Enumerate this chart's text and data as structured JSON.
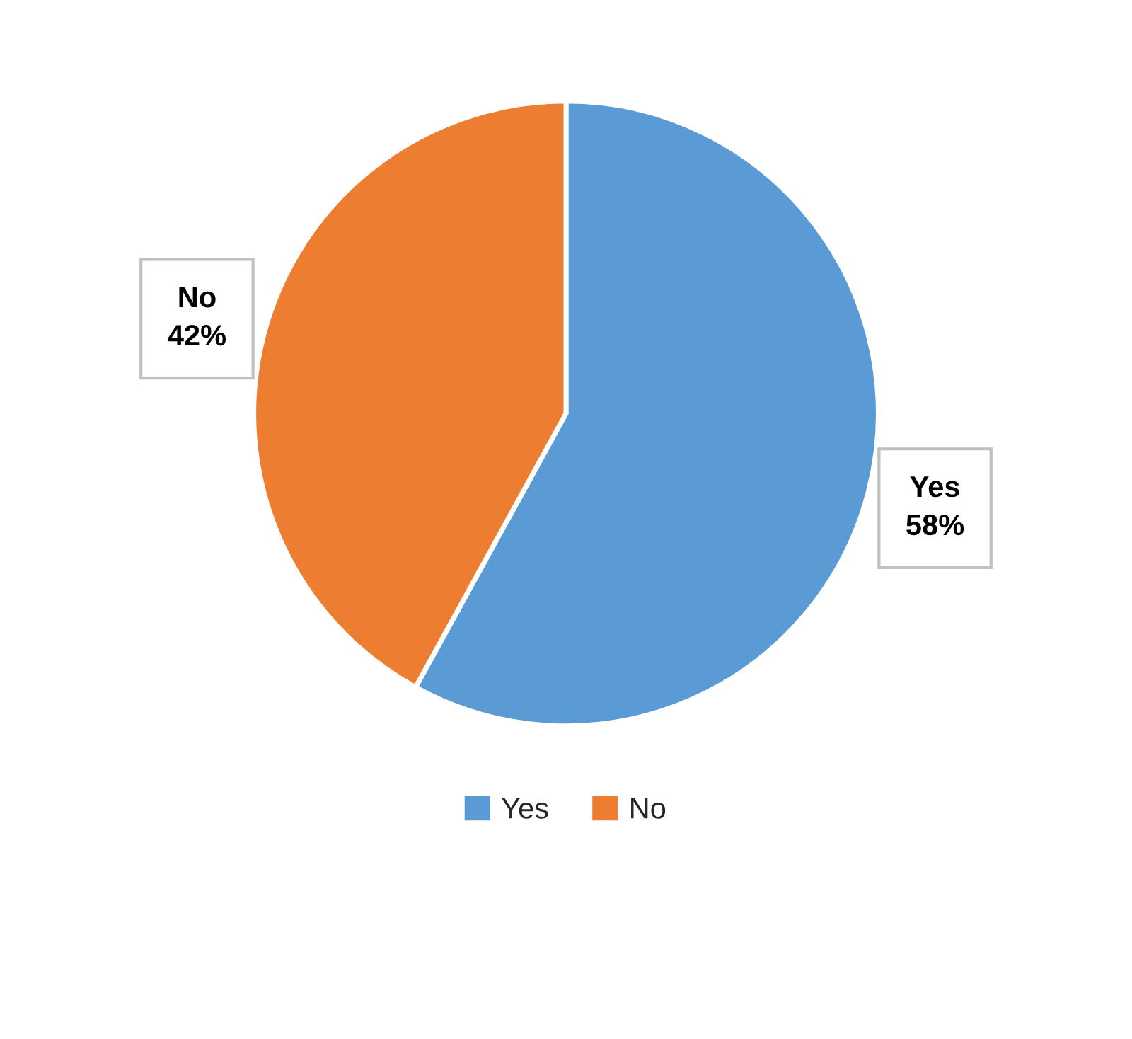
{
  "chart_data": {
    "type": "pie",
    "categories": [
      "Yes",
      "No"
    ],
    "values": [
      58,
      42
    ],
    "colors": [
      "#5b9bd5",
      "#ed7d31"
    ],
    "value_labels": [
      "58%",
      "42%"
    ],
    "legend": "bottom"
  }
}
